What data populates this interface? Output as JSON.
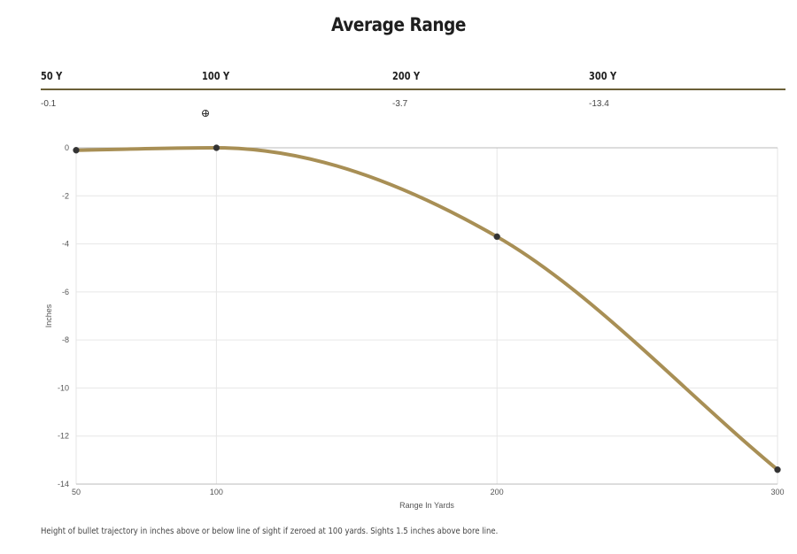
{
  "title": "Average Range",
  "range_table": {
    "columns": [
      {
        "label": "50 Y",
        "value": "-0.1"
      },
      {
        "label": "100 Y",
        "value": "",
        "icon": "crosshair-icon"
      },
      {
        "label": "200 Y",
        "value": "-3.7"
      },
      {
        "label": "300 Y",
        "value": "-13.4"
      }
    ]
  },
  "chart_data": {
    "type": "line",
    "x": [
      50,
      100,
      200,
      300
    ],
    "xticks": [
      "50",
      "100",
      "200",
      "300"
    ],
    "series": [
      {
        "values": [
          -0.1,
          0,
          -3.7,
          -13.4
        ],
        "color": "#a88f55"
      }
    ],
    "yticks": [
      "0",
      "-2",
      "-4",
      "-6",
      "-8",
      "-10",
      "-12",
      "-14"
    ],
    "xlabel": "Range In Yards",
    "ylabel": "Inches",
    "ylim": [
      -14,
      0
    ],
    "grid": true,
    "marker_color": "#333333"
  },
  "footnote": "Height of bullet trajectory in inches above or below line of sight if zeroed at 100 yards. Sights 1.5 inches above bore line."
}
